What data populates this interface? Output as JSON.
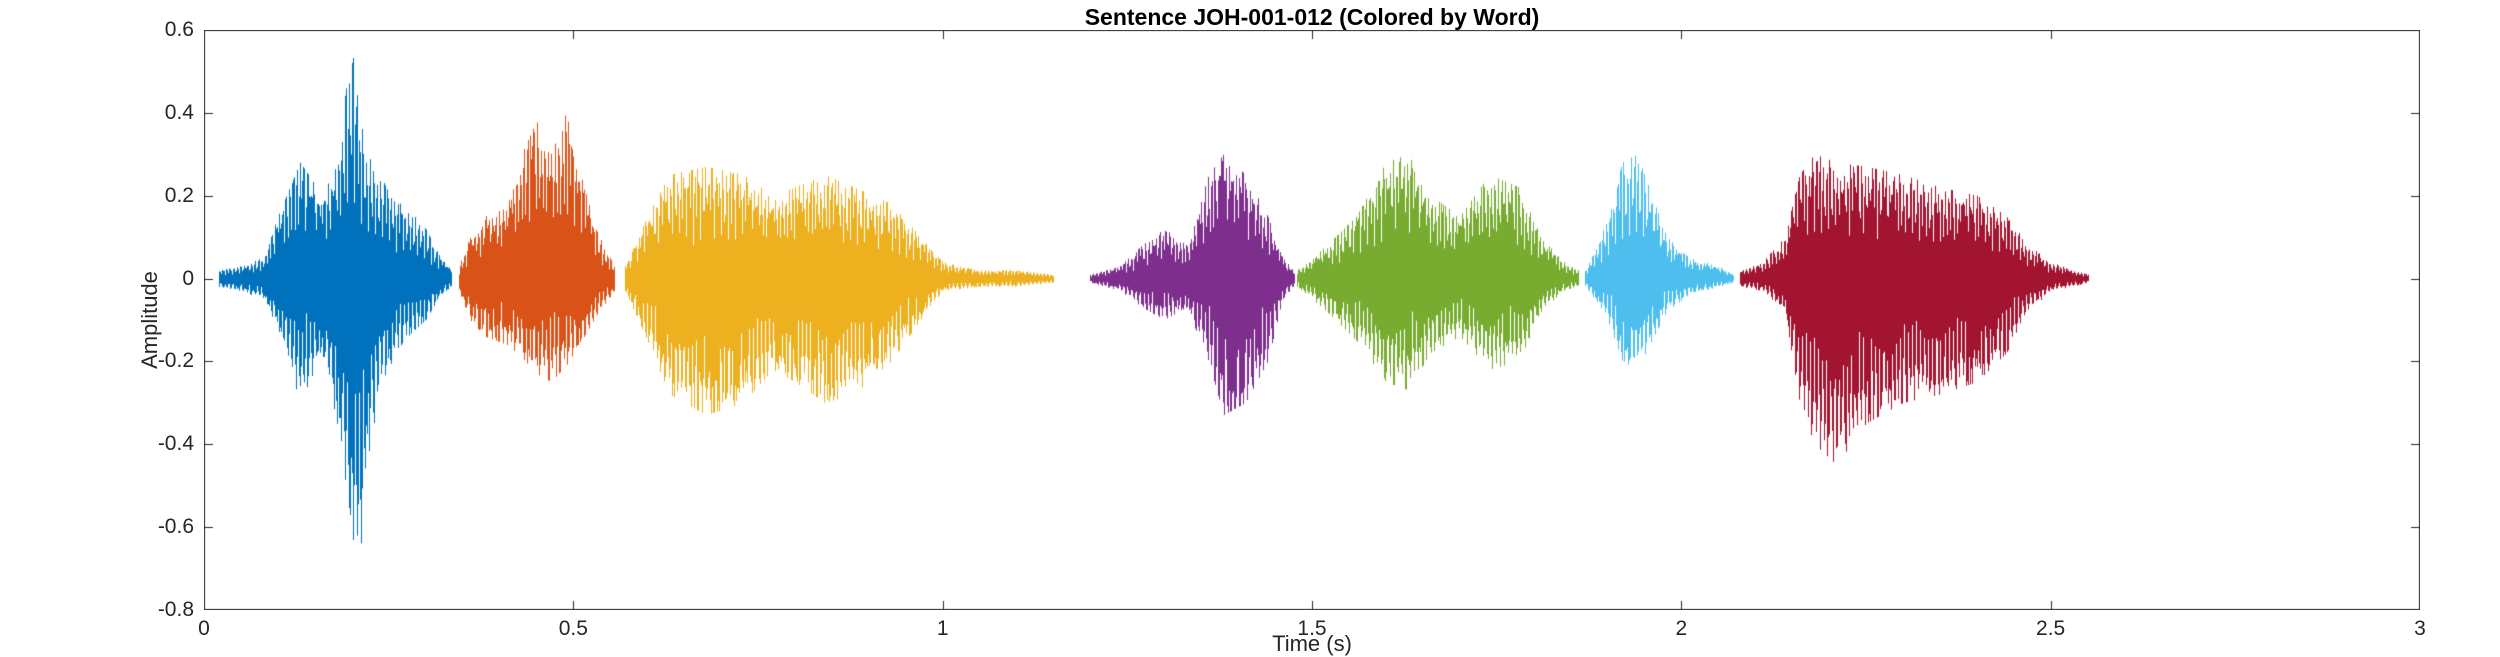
{
  "chart_data": {
    "type": "line",
    "subtype": "audio-waveform",
    "title": "Sentence JOH-001-012 (Colored by Word)",
    "xlabel": "Time (s)",
    "ylabel": "Amplitude",
    "xlim": [
      0,
      3
    ],
    "ylim": [
      -0.8,
      0.6
    ],
    "xticks": [
      0,
      0.5,
      1,
      1.5,
      2,
      2.5,
      3
    ],
    "xtick_labels": [
      "0",
      "0.5",
      "1",
      "1.5",
      "2",
      "2.5",
      "3"
    ],
    "yticks": [
      -0.8,
      -0.6,
      -0.4,
      -0.2,
      0,
      0.2,
      0.4,
      0.6
    ],
    "ytick_labels": [
      "-0.8",
      "-0.6",
      "-0.4",
      "-0.2",
      "0",
      "0.2",
      "0.4",
      "0.6"
    ],
    "grid": false,
    "box": true,
    "legend": "none",
    "axis_color": "#262626",
    "background_color": "#ffffff",
    "series": [
      {
        "name": "word-1",
        "color": "#0072BD",
        "t_start": 0.02,
        "t_end": 0.335,
        "peak_amplitude": 0.56,
        "min_amplitude": -0.78,
        "envelope": [
          [
            0.02,
            0.02,
            0.02
          ],
          [
            0.05,
            0.03,
            0.03
          ],
          [
            0.08,
            0.05,
            0.05
          ],
          [
            0.1,
            0.15,
            0.12
          ],
          [
            0.13,
            0.28,
            0.3
          ],
          [
            0.16,
            0.2,
            0.18
          ],
          [
            0.18,
            0.3,
            0.35
          ],
          [
            0.2,
            0.56,
            0.6
          ],
          [
            0.21,
            0.4,
            0.78
          ],
          [
            0.22,
            0.3,
            0.45
          ],
          [
            0.24,
            0.25,
            0.25
          ],
          [
            0.27,
            0.18,
            0.15
          ],
          [
            0.3,
            0.12,
            0.1
          ],
          [
            0.32,
            0.05,
            0.04
          ],
          [
            0.335,
            0.02,
            0.02
          ]
        ]
      },
      {
        "name": "word-2",
        "color": "#D95319",
        "t_start": 0.345,
        "t_end": 0.555,
        "peak_amplitude": 0.4,
        "min_amplitude": -0.25,
        "envelope": [
          [
            0.345,
            0.03,
            0.03
          ],
          [
            0.36,
            0.1,
            0.1
          ],
          [
            0.38,
            0.15,
            0.14
          ],
          [
            0.41,
            0.17,
            0.16
          ],
          [
            0.43,
            0.3,
            0.19
          ],
          [
            0.45,
            0.38,
            0.23
          ],
          [
            0.47,
            0.3,
            0.25
          ],
          [
            0.49,
            0.4,
            0.21
          ],
          [
            0.51,
            0.25,
            0.18
          ],
          [
            0.53,
            0.12,
            0.1
          ],
          [
            0.555,
            0.03,
            0.03
          ]
        ]
      },
      {
        "name": "word-3",
        "color": "#EDB120",
        "t_start": 0.57,
        "t_end": 1.15,
        "peak_amplitude": 0.27,
        "min_amplitude": -0.33,
        "envelope": [
          [
            0.57,
            0.03,
            0.03
          ],
          [
            0.6,
            0.15,
            0.15
          ],
          [
            0.63,
            0.25,
            0.28
          ],
          [
            0.68,
            0.27,
            0.33
          ],
          [
            0.73,
            0.25,
            0.3
          ],
          [
            0.77,
            0.2,
            0.22
          ],
          [
            0.8,
            0.22,
            0.25
          ],
          [
            0.84,
            0.25,
            0.3
          ],
          [
            0.88,
            0.22,
            0.28
          ],
          [
            0.93,
            0.18,
            0.2
          ],
          [
            0.97,
            0.1,
            0.1
          ],
          [
            1.0,
            0.04,
            0.03
          ],
          [
            1.05,
            0.02,
            0.02
          ],
          [
            1.1,
            0.02,
            0.02
          ],
          [
            1.15,
            0.01,
            0.01
          ]
        ]
      },
      {
        "name": "word-4",
        "color": "#7E2F8E",
        "t_start": 1.2,
        "t_end": 1.475,
        "peak_amplitude": 0.3,
        "min_amplitude": -0.33,
        "envelope": [
          [
            1.2,
            0.01,
            0.01
          ],
          [
            1.24,
            0.03,
            0.03
          ],
          [
            1.27,
            0.08,
            0.07
          ],
          [
            1.3,
            0.12,
            0.1
          ],
          [
            1.33,
            0.08,
            0.07
          ],
          [
            1.36,
            0.25,
            0.2
          ],
          [
            1.38,
            0.3,
            0.33
          ],
          [
            1.41,
            0.25,
            0.3
          ],
          [
            1.44,
            0.15,
            0.2
          ],
          [
            1.46,
            0.05,
            0.05
          ],
          [
            1.475,
            0.02,
            0.02
          ]
        ]
      },
      {
        "name": "word-5",
        "color": "#77AC30",
        "t_start": 1.48,
        "t_end": 1.86,
        "peak_amplitude": 0.3,
        "min_amplitude": -0.27,
        "envelope": [
          [
            1.48,
            0.02,
            0.02
          ],
          [
            1.52,
            0.08,
            0.08
          ],
          [
            1.56,
            0.15,
            0.15
          ],
          [
            1.6,
            0.28,
            0.25
          ],
          [
            1.63,
            0.3,
            0.27
          ],
          [
            1.66,
            0.2,
            0.18
          ],
          [
            1.7,
            0.15,
            0.14
          ],
          [
            1.74,
            0.25,
            0.22
          ],
          [
            1.78,
            0.22,
            0.2
          ],
          [
            1.81,
            0.1,
            0.08
          ],
          [
            1.84,
            0.04,
            0.03
          ],
          [
            1.86,
            0.02,
            0.02
          ]
        ]
      },
      {
        "name": "word-6",
        "color": "#4DBEEE",
        "t_start": 1.87,
        "t_end": 2.07,
        "peak_amplitude": 0.3,
        "min_amplitude": -0.22,
        "envelope": [
          [
            1.87,
            0.02,
            0.02
          ],
          [
            1.9,
            0.15,
            0.1
          ],
          [
            1.92,
            0.28,
            0.2
          ],
          [
            1.94,
            0.3,
            0.22
          ],
          [
            1.96,
            0.2,
            0.15
          ],
          [
            1.98,
            0.1,
            0.08
          ],
          [
            2.01,
            0.05,
            0.04
          ],
          [
            2.05,
            0.03,
            0.02
          ],
          [
            2.07,
            0.01,
            0.01
          ]
        ]
      },
      {
        "name": "word-7",
        "color": "#A2142F",
        "t_start": 2.08,
        "t_end": 2.55,
        "peak_amplitude": 0.3,
        "min_amplitude": -0.45,
        "envelope": [
          [
            2.08,
            0.02,
            0.02
          ],
          [
            2.11,
            0.04,
            0.03
          ],
          [
            2.14,
            0.1,
            0.08
          ],
          [
            2.16,
            0.25,
            0.3
          ],
          [
            2.18,
            0.3,
            0.4
          ],
          [
            2.21,
            0.28,
            0.45
          ],
          [
            2.25,
            0.27,
            0.35
          ],
          [
            2.3,
            0.25,
            0.3
          ],
          [
            2.35,
            0.22,
            0.28
          ],
          [
            2.4,
            0.2,
            0.25
          ],
          [
            2.44,
            0.15,
            0.18
          ],
          [
            2.47,
            0.08,
            0.08
          ],
          [
            2.5,
            0.04,
            0.03
          ],
          [
            2.53,
            0.02,
            0.02
          ],
          [
            2.55,
            0.01,
            0.01
          ]
        ]
      }
    ]
  }
}
